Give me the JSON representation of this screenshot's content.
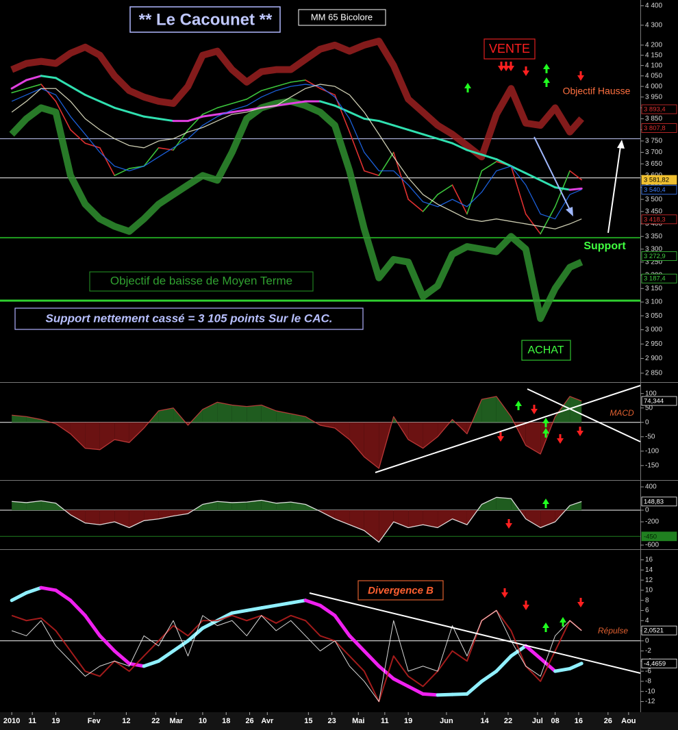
{
  "chart_data": [
    {
      "type": "line",
      "title": "** Le Cacounet **",
      "subtitle": "MM 65 Bicolore",
      "annotations": [
        "VENTE",
        "Objectif Hausse",
        "Support",
        "Objectif de baisse de Moyen Terme",
        "Support nettement cassé = 3 105 points Sur le CAC.",
        "ACHAT"
      ],
      "x": [
        4,
        9,
        14,
        19,
        24,
        29,
        34,
        39,
        44,
        49,
        54,
        59,
        64,
        69,
        74,
        79,
        84,
        89,
        94,
        99,
        104,
        109,
        114,
        119,
        124,
        129,
        134,
        139,
        144,
        149,
        154,
        159,
        164,
        169,
        174,
        179,
        184,
        189,
        194,
        198
      ],
      "xlim": [
        0,
        218
      ],
      "ylim": [
        2820,
        4430
      ],
      "log": true,
      "yticks": [
        {
          "value": 4400,
          "label": "4 400"
        },
        {
          "value": 4300,
          "label": "4 300"
        },
        {
          "value": 4200,
          "label": "4 200"
        },
        {
          "value": 4150,
          "label": "4 150"
        },
        {
          "value": 4100,
          "label": "4 100"
        },
        {
          "value": 4050,
          "label": "4 050"
        },
        {
          "value": 4000,
          "label": "4 000"
        },
        {
          "value": 3950,
          "label": "3 950"
        },
        {
          "value": 3900,
          "label": "3 900"
        },
        {
          "value": 3850,
          "label": "3 850"
        },
        {
          "value": 3800,
          "label": "3 800"
        },
        {
          "value": 3750,
          "label": "3 750"
        },
        {
          "value": 3700,
          "label": "3 700"
        },
        {
          "value": 3650,
          "label": "3 650"
        },
        {
          "value": 3600,
          "label": "3 600"
        },
        {
          "value": 3550,
          "label": "3 550"
        },
        {
          "value": 3500,
          "label": "3 500"
        },
        {
          "value": 3450,
          "label": "3 450"
        },
        {
          "value": 3400,
          "label": "3 400"
        },
        {
          "value": 3350,
          "label": "3 350"
        },
        {
          "value": 3300,
          "label": "3 300"
        },
        {
          "value": 3250,
          "label": "3 250"
        },
        {
          "value": 3200,
          "label": "3 200"
        },
        {
          "value": 3150,
          "label": "3 150"
        },
        {
          "value": 3100,
          "label": "3 100"
        },
        {
          "value": 3050,
          "label": "3 050"
        },
        {
          "value": 3000,
          "label": "3 000"
        },
        {
          "value": 2950,
          "label": "2 950"
        },
        {
          "value": 2900,
          "label": "2 900"
        },
        {
          "value": 2850,
          "label": "2 850"
        }
      ],
      "hlines": [
        {
          "value": 3760,
          "color": "#c8d0ff",
          "width": 1
        },
        {
          "value": 3590,
          "color": "#ffffff",
          "width": 1
        },
        {
          "value": 3345,
          "color": "#20a020",
          "width": 2
        },
        {
          "value": 3105,
          "color": "#30d030",
          "width": 3
        }
      ],
      "value_boxes": [
        {
          "value": 3893.4,
          "label": "3 893,4",
          "color": "#e03030"
        },
        {
          "value": 3807.8,
          "label": "3 807,8",
          "color": "#e03030"
        },
        {
          "value": 3581.82,
          "label": "3 581,82",
          "color": "#000000",
          "background": "#f0c030"
        },
        {
          "value": 3540.4,
          "label": "3 540,4",
          "color": "#4080ff"
        },
        {
          "value": 3418.3,
          "label": "3 418,3",
          "color": "#e03030"
        },
        {
          "value": 3272.9,
          "label": "3 272,9",
          "color": "#40d040"
        },
        {
          "value": 3187.4,
          "label": "3 187,4",
          "color": "#40d040"
        }
      ],
      "series": [
        {
          "values": [
            3970,
            3990,
            4010,
            3930,
            3800,
            3740,
            3720,
            3600,
            3630,
            3640,
            3720,
            3710,
            3800,
            3870,
            3900,
            3920,
            3940,
            3980,
            4000,
            4020,
            4030,
            3990,
            3960,
            3790,
            3620,
            3600,
            3700,
            3500,
            3450,
            3520,
            3560,
            3440,
            3620,
            3660,
            3640,
            3440,
            3360,
            3470,
            3620,
            3581.82
          ],
          "colors": [
            "#3cc43c",
            "#e03030"
          ],
          "width": 1.6
        },
        {
          "values": [
            4080,
            4110,
            4120,
            4110,
            4160,
            4190,
            4150,
            4050,
            3980,
            3950,
            3930,
            3920,
            4000,
            4150,
            4170,
            4080,
            4020,
            4070,
            4080,
            4080,
            4130,
            4180,
            4200,
            4170,
            4200,
            4220,
            4100,
            3940,
            3880,
            3820,
            3780,
            3730,
            3680,
            3870,
            3990,
            3830,
            3820,
            3900,
            3790,
            3850
          ],
          "color": "#9a2020",
          "width": 10
        },
        {
          "values": [
            3780,
            3850,
            3900,
            3880,
            3600,
            3480,
            3420,
            3390,
            3370,
            3420,
            3480,
            3520,
            3560,
            3600,
            3580,
            3700,
            3850,
            3900,
            3920,
            3930,
            3910,
            3880,
            3820,
            3620,
            3380,
            3190,
            3260,
            3250,
            3120,
            3160,
            3280,
            3310,
            3300,
            3290,
            3350,
            3300,
            3040,
            3150,
            3230,
            3250
          ],
          "color": "#2f8f2f",
          "width": 10
        },
        {
          "values": [
            3990,
            4030,
            4050,
            4040,
            4000,
            3960,
            3930,
            3900,
            3880,
            3860,
            3850,
            3840,
            3840,
            3860,
            3870,
            3880,
            3890,
            3900,
            3910,
            3920,
            3930,
            3930,
            3910,
            3880,
            3850,
            3840,
            3820,
            3800,
            3780,
            3760,
            3740,
            3710,
            3690,
            3670,
            3640,
            3610,
            3580,
            3550,
            3540,
            3545
          ],
          "colors": [
            "#e040e0",
            "#30e0b0"
          ],
          "width": 3
        },
        {
          "values": [
            3930,
            3960,
            3990,
            3960,
            3860,
            3780,
            3700,
            3640,
            3620,
            3640,
            3680,
            3720,
            3760,
            3820,
            3860,
            3890,
            3910,
            3950,
            3980,
            4000,
            4010,
            4000,
            3950,
            3850,
            3700,
            3620,
            3620,
            3560,
            3490,
            3470,
            3500,
            3470,
            3530,
            3620,
            3640,
            3560,
            3440,
            3420,
            3520,
            3540.4
          ],
          "color": "#2070ff",
          "width": 1.3
        },
        {
          "values": [
            3880,
            3930,
            3990,
            3990,
            3930,
            3850,
            3800,
            3760,
            3730,
            3720,
            3750,
            3760,
            3790,
            3810,
            3840,
            3870,
            3880,
            3900,
            3910,
            3950,
            3990,
            4010,
            4000,
            3960,
            3880,
            3780,
            3680,
            3590,
            3520,
            3480,
            3450,
            3420,
            3410,
            3420,
            3410,
            3400,
            3390,
            3380,
            3400,
            3420
          ],
          "color": "#f0f0d0",
          "width": 1.3
        }
      ]
    },
    {
      "type": "area",
      "annotations": [
        "MACD"
      ],
      "x": [
        4,
        9,
        14,
        19,
        24,
        29,
        34,
        39,
        44,
        49,
        54,
        59,
        64,
        69,
        74,
        79,
        84,
        89,
        94,
        99,
        104,
        109,
        114,
        119,
        124,
        129,
        134,
        139,
        144,
        149,
        154,
        159,
        164,
        169,
        174,
        179,
        184,
        189,
        194,
        198
      ],
      "xlim": [
        0,
        218
      ],
      "ylim": [
        -198,
        135
      ],
      "yticks": [
        100,
        50,
        0,
        -50,
        -100,
        -150
      ],
      "hlines": [
        {
          "value": 0,
          "color": "#ffffff",
          "width": 1
        }
      ],
      "value_boxes": [
        {
          "value": 74.344,
          "label": "74,344",
          "color": "#ffffff"
        }
      ],
      "series": [
        {
          "values": [
            25,
            20,
            10,
            -5,
            -40,
            -90,
            -95,
            -60,
            -70,
            -20,
            40,
            50,
            -10,
            45,
            70,
            60,
            55,
            60,
            40,
            30,
            20,
            -10,
            -20,
            -60,
            -120,
            -160,
            20,
            -60,
            -90,
            -50,
            10,
            -40,
            80,
            90,
            20,
            -80,
            -110,
            20,
            90,
            74.344
          ],
          "color": "#d04040",
          "pos_color": "#1f5c1f",
          "neg_color": "#6b1212"
        }
      ]
    },
    {
      "type": "area",
      "x": [
        4,
        9,
        14,
        19,
        24,
        29,
        34,
        39,
        44,
        49,
        54,
        59,
        64,
        69,
        74,
        79,
        84,
        89,
        94,
        99,
        104,
        109,
        114,
        119,
        124,
        129,
        134,
        139,
        144,
        149,
        154,
        159,
        164,
        169,
        174,
        179,
        184,
        189,
        194,
        198
      ],
      "xlim": [
        0,
        218
      ],
      "ylim": [
        -647,
        494
      ],
      "yticks": [
        400,
        0,
        -200,
        -600
      ],
      "hlines": [
        {
          "value": 0,
          "color": "#ffffff",
          "width": 1
        },
        {
          "value": -450,
          "color": "#208020",
          "width": 1
        }
      ],
      "value_boxes": [
        {
          "value": 148.83,
          "label": "148,83",
          "color": "#ffffff"
        },
        {
          "value": -450,
          "label": "-450",
          "color": "#002000",
          "background": "#208020"
        }
      ],
      "series": [
        {
          "values": [
            150,
            130,
            160,
            120,
            -80,
            -220,
            -250,
            -200,
            -300,
            -180,
            -150,
            -100,
            -60,
            100,
            150,
            130,
            140,
            170,
            120,
            140,
            100,
            -20,
            -150,
            -250,
            -350,
            -550,
            -200,
            -300,
            -250,
            -300,
            -150,
            -250,
            100,
            220,
            200,
            -150,
            -300,
            -200,
            80,
            148.83
          ],
          "color": "#ffffff",
          "pos_color": "#1f5c1f",
          "neg_color": "#6b1212"
        }
      ]
    },
    {
      "type": "line",
      "annotations": [
        "Divergence B",
        "Répulse"
      ],
      "x": [
        4,
        9,
        14,
        19,
        24,
        29,
        34,
        39,
        44,
        49,
        54,
        59,
        64,
        69,
        74,
        79,
        84,
        89,
        94,
        99,
        104,
        109,
        114,
        119,
        124,
        129,
        134,
        139,
        144,
        149,
        154,
        159,
        164,
        169,
        174,
        179,
        184,
        189,
        194,
        198
      ],
      "xlim": [
        0,
        218
      ],
      "ylim": [
        -14.1,
        17.7
      ],
      "yticks": [
        16,
        14,
        12,
        10,
        8,
        6,
        4,
        2,
        0,
        -2,
        -4,
        -6,
        -8,
        -10,
        -12
      ],
      "hlines": [
        {
          "value": 0,
          "color": "#ffffff",
          "width": 1
        }
      ],
      "value_boxes": [
        {
          "value": 2.0521,
          "label": "2,0521",
          "color": "#ffffff"
        },
        {
          "value": -4.4659,
          "label": "-4,4659",
          "color": "#ffffff"
        }
      ],
      "xticks": [
        {
          "value": 4,
          "label": "2010"
        },
        11,
        19,
        {
          "value": 32,
          "label": "Fev"
        },
        {
          "value": 43,
          "label": "12"
        },
        {
          "value": 53,
          "label": "22"
        },
        {
          "value": 60,
          "label": "Mar"
        },
        {
          "value": 69,
          "label": "10"
        },
        {
          "value": 77,
          "label": "18"
        },
        {
          "value": 85,
          "label": "26"
        },
        {
          "value": 91,
          "label": "Avr"
        },
        {
          "value": 105,
          "label": "15"
        },
        {
          "value": 113,
          "label": "23"
        },
        {
          "value": 122,
          "label": "Mai"
        },
        {
          "value": 131,
          "label": "11"
        },
        {
          "value": 139,
          "label": "19"
        },
        {
          "value": 152,
          "label": "Jun"
        },
        {
          "value": 165,
          "label": "14"
        },
        {
          "value": 173,
          "label": "22"
        },
        {
          "value": 183,
          "label": "Jul"
        },
        {
          "value": 189,
          "label": "08"
        },
        {
          "value": 197,
          "label": "16"
        },
        {
          "value": 207,
          "label": "26"
        },
        {
          "value": 214,
          "label": "Aou"
        }
      ],
      "series": [
        {
          "values": [
            8,
            9.5,
            10.5,
            10,
            8,
            5,
            1,
            -2,
            -4.5,
            -5,
            -4,
            -2,
            0,
            2.5,
            4,
            5.5,
            6,
            6.5,
            7,
            7.5,
            8,
            7,
            5,
            1,
            -2,
            -5,
            -7.5,
            -9,
            -10.5,
            -10.7,
            -10.6,
            -10.5,
            -8,
            -6,
            -3,
            -1,
            -3.5,
            -6,
            -5.5,
            -4.4659
          ],
          "colors": [
            "#90f0ff",
            "#f020f0"
          ],
          "width": 5
        },
        {
          "values": [
            5,
            4,
            4.5,
            2,
            -2,
            -6,
            -7,
            -4,
            -6,
            -3,
            0,
            3,
            1,
            4,
            4,
            5,
            4,
            5,
            3.5,
            5,
            4,
            1,
            0,
            -3,
            -6,
            -12,
            -3,
            -7,
            -9,
            -6,
            -2,
            -4,
            4,
            6,
            2,
            -5,
            -8,
            -2,
            4,
            2.0521
          ],
          "color": "#c02020",
          "width": 2
        },
        {
          "values": [
            2,
            1,
            4,
            -1,
            -4,
            -7,
            -5,
            -4,
            -5,
            1,
            -1,
            4,
            -3,
            5,
            3,
            4,
            1,
            5,
            2,
            4,
            1,
            -2,
            0,
            -5,
            -8,
            -12,
            4,
            -6,
            -5,
            -6,
            3,
            -3,
            4,
            6,
            0,
            -5,
            -7,
            1,
            4,
            2
          ],
          "color": "#ffffff",
          "width": 1
        }
      ]
    }
  ]
}
